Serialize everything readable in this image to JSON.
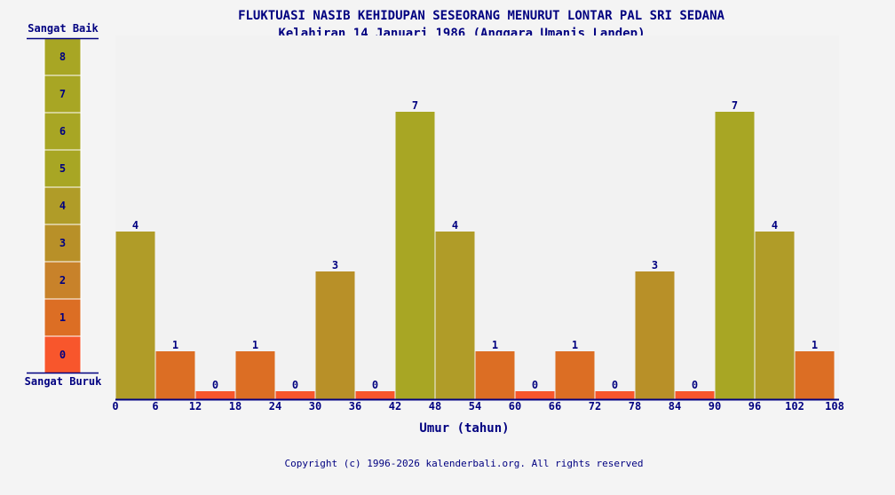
{
  "chart_data": {
    "type": "bar",
    "title": "FLUKTUASI NASIB KEHIDUPAN SESEORANG MENURUT LONTAR PAL SRI SEDANA",
    "subtitle": "Kelahiran 14 Januari 1986 (Anggara Umanis Landep)",
    "xlabel": "Umur (tahun)",
    "x_ticks": [
      0,
      6,
      12,
      18,
      24,
      30,
      36,
      42,
      48,
      54,
      60,
      66,
      72,
      78,
      84,
      90,
      96,
      102,
      108
    ],
    "values": [
      4,
      1,
      0,
      1,
      0,
      3,
      0,
      7,
      4,
      1,
      0,
      1,
      0,
      3,
      0,
      7,
      4,
      1
    ],
    "ylim": [
      0,
      8
    ],
    "scale": {
      "top_label": "Sangat Baik",
      "bottom_label": "Sangat Buruk",
      "levels": [
        0,
        1,
        2,
        3,
        4,
        5,
        6,
        7,
        8
      ]
    },
    "level_colors": [
      "#f8562c",
      "#dc6e24",
      "#c8822a",
      "#b89028",
      "#b09c28",
      "#a8a624",
      "#a8a624",
      "#a8a624",
      "#a8a624"
    ]
  },
  "footer": "Copyright (c) 1996-2026 kalenderbali.org. All rights reserved"
}
